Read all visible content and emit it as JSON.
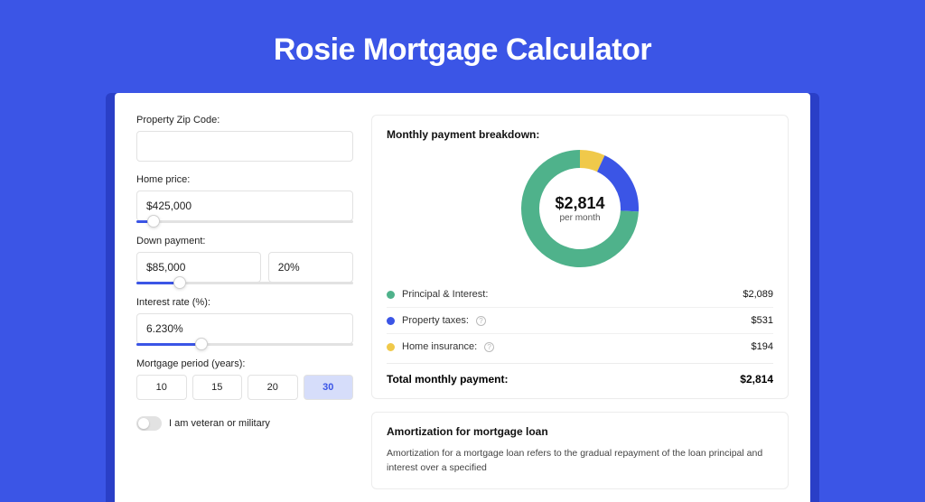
{
  "page": {
    "title": "Rosie Mortgage Calculator",
    "background_color": "#3b55e6",
    "card_background": "#ffffff",
    "card_shadow_color": "#2a3fc7"
  },
  "form": {
    "zip": {
      "label": "Property Zip Code:",
      "value": ""
    },
    "home_price": {
      "label": "Home price:",
      "value": "$425,000",
      "slider_pct": 8
    },
    "down_payment": {
      "label": "Down payment:",
      "value": "$85,000",
      "pct_value": "20%",
      "slider_pct": 20
    },
    "interest_rate": {
      "label": "Interest rate (%):",
      "value": "6.230%",
      "slider_pct": 30
    },
    "mortgage_period": {
      "label": "Mortgage period (years):",
      "options": [
        "10",
        "15",
        "20",
        "30"
      ],
      "selected": "30"
    },
    "veteran": {
      "label": "I am veteran or military",
      "on": false
    }
  },
  "breakdown": {
    "title": "Monthly payment breakdown:",
    "donut": {
      "center_value": "$2,814",
      "center_sub": "per month",
      "segments": [
        {
          "label": "Principal & Interest:",
          "value": "$2,089",
          "color": "#4fb28b",
          "angle": 267,
          "has_info": false
        },
        {
          "label": "Property taxes:",
          "value": "$531",
          "color": "#3b55e6",
          "angle": 68,
          "has_info": true
        },
        {
          "label": "Home insurance:",
          "value": "$194",
          "color": "#f0c94a",
          "angle": 25,
          "has_info": true
        }
      ],
      "stroke_width": 20,
      "background": "#ffffff"
    },
    "total": {
      "label": "Total monthly payment:",
      "value": "$2,814"
    }
  },
  "amortization": {
    "title": "Amortization for mortgage loan",
    "text": "Amortization for a mortgage loan refers to the gradual repayment of the loan principal and interest over a specified"
  }
}
